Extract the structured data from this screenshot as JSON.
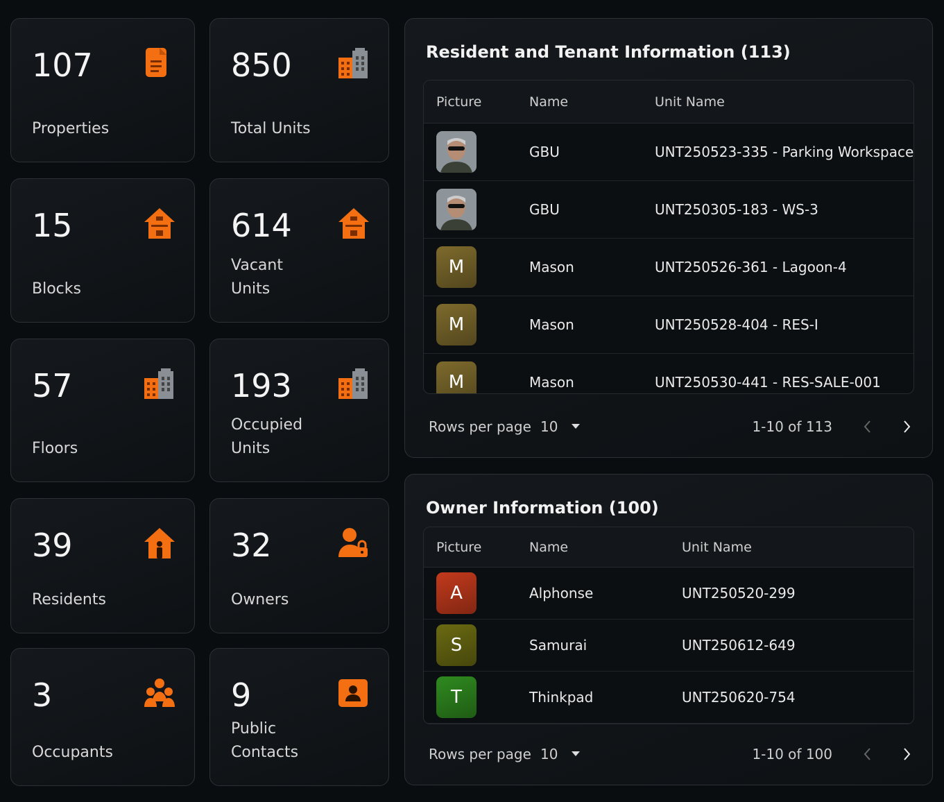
{
  "stats": [
    {
      "value": 107,
      "label": "Properties",
      "icon": "doc"
    },
    {
      "value": 850,
      "label": "Total Units",
      "icon": "building"
    },
    {
      "value": 15,
      "label": "Blocks",
      "icon": "house"
    },
    {
      "value": 614,
      "label": "Vacant Units",
      "icon": "house"
    },
    {
      "value": 57,
      "label": "Floors",
      "icon": "building"
    },
    {
      "value": 193,
      "label": "Occupied Units",
      "icon": "building"
    },
    {
      "value": 39,
      "label": "Residents",
      "icon": "resident"
    },
    {
      "value": 32,
      "label": "Owners",
      "icon": "owner"
    },
    {
      "value": 3,
      "label": "Occupants",
      "icon": "group"
    },
    {
      "value": 9,
      "label": "Public Contacts",
      "icon": "contact"
    }
  ],
  "tables": [
    {
      "title": "Resident and Tenant Information (113)",
      "columns": [
        "Picture",
        "Name",
        "Unit Name"
      ],
      "rows": [
        {
          "name": "GBU",
          "unit": "UNT250523-335 - Parking Workspace"
        },
        {
          "name": "GBU",
          "unit": "UNT250305-183 - WS-3"
        },
        {
          "initial": "M",
          "color": "#7d6a2c",
          "name": "Mason",
          "unit": "UNT250526-361 - Lagoon-4"
        },
        {
          "initial": "M",
          "color": "#7d6a2c",
          "name": "Mason",
          "unit": "UNT250528-404 - RES-I"
        },
        {
          "initial": "M",
          "color": "#7d6a2c",
          "name": "Mason",
          "unit": "UNT250530-441 - RES-SALE-001"
        }
      ],
      "rows_label": "Rows per page",
      "rows_per_page": 10,
      "range": "1-10 of 113"
    },
    {
      "title": "Owner Information (100)",
      "columns": [
        "Picture",
        "Name",
        "Unit Name"
      ],
      "rows": [
        {
          "initial": "A",
          "color": "#c23a1c",
          "name": "Alphonse",
          "unit": "UNT250520-299"
        },
        {
          "initial": "S",
          "color": "#6a6a12",
          "name": "Samurai",
          "unit": "UNT250612-649"
        },
        {
          "initial": "T",
          "color": "#2f8a1f",
          "name": "Thinkpad",
          "unit": "UNT250620-754"
        }
      ],
      "rows_label": "Rows per page",
      "rows_per_page": 10,
      "range": "1-10 of 100"
    }
  ]
}
